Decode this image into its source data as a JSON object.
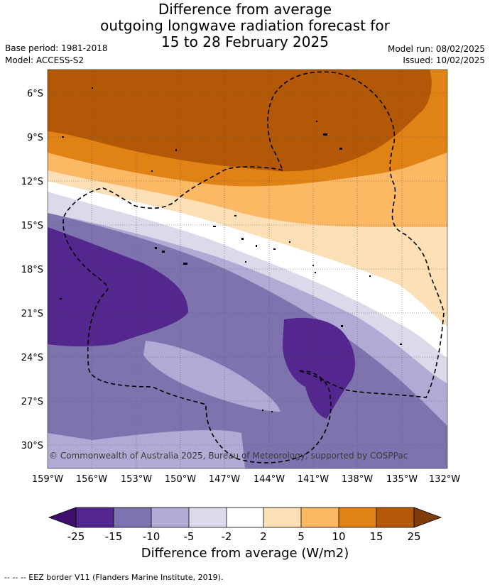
{
  "title": {
    "line1": "Difference from average",
    "line2": "outgoing longwave radiation forecast for",
    "line3": "15 to 28 February 2025"
  },
  "meta": {
    "base_period": "Base period: 1981-2018",
    "model": "Model: ACCESS-S2",
    "model_run": "Model run: 08/02/2025",
    "issued": "Issued: 10/02/2025"
  },
  "map": {
    "lat_ticks": [
      "6°S",
      "9°S",
      "12°S",
      "15°S",
      "18°S",
      "21°S",
      "24°S",
      "27°S",
      "30°S"
    ],
    "lon_ticks": [
      "159°W",
      "156°W",
      "153°W",
      "150°W",
      "147°W",
      "144°W",
      "141°W",
      "138°W",
      "135°W",
      "132°W"
    ],
    "copyright": "© Commonwealth of Australia 2025, Bureau of Meteorology, supported by COSPPac"
  },
  "colorbar": {
    "labels": [
      "-25",
      "-15",
      "-10",
      "-5",
      "-2",
      "2",
      "5",
      "10",
      "15",
      "25"
    ],
    "colors": [
      "#3f0f6e",
      "#54278f",
      "#7e73ae",
      "#b0aad4",
      "#dadaeb",
      "#ffffff",
      "#fee0b6",
      "#fdb863",
      "#e08214",
      "#b35806",
      "#7f3b08"
    ],
    "title": "Difference from average (W/m2)"
  },
  "footer": "--  --  -- EEZ border V11 (Flanders Marine Institute, 2019)."
}
